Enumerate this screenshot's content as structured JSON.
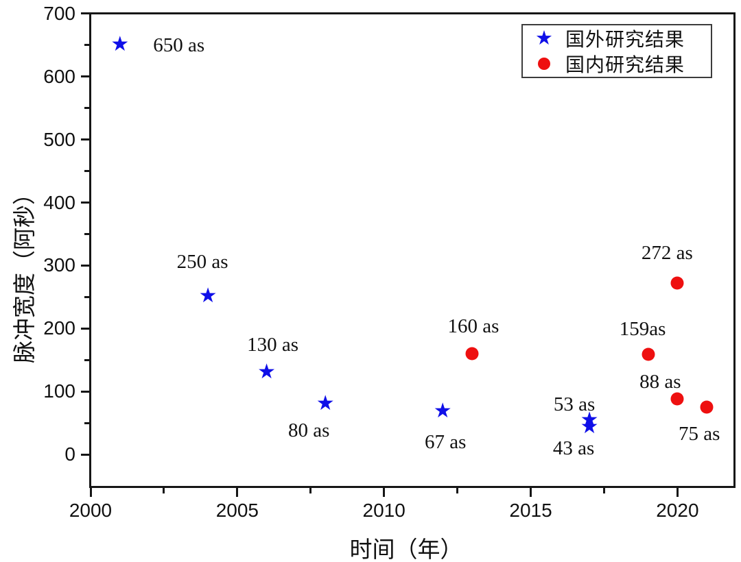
{
  "chart_data": {
    "type": "scatter",
    "title": "",
    "xlabel": "时间（年）",
    "ylabel": "脉冲宽度（阿秒）",
    "xlim": [
      2000,
      2022
    ],
    "ylim": [
      -52,
      700
    ],
    "x_major_ticks": [
      2000,
      2005,
      2010,
      2015,
      2020
    ],
    "x_minor_ticks": [
      2002.5,
      2007.5,
      2012.5,
      2017.5
    ],
    "y_major_ticks": [
      0,
      100,
      200,
      300,
      400,
      500,
      600,
      700
    ],
    "y_minor_ticks": [
      50,
      150,
      250,
      350,
      450,
      550,
      650
    ],
    "grid": false,
    "legend_position": "top-right",
    "series": [
      {
        "name": "国外研究结果",
        "marker": "star",
        "color": "#0f0fe8",
        "points": [
          {
            "x": 2001,
            "y": 650,
            "label": "650 as",
            "label_dx": 86,
            "label_dy": 0
          },
          {
            "x": 2004,
            "y": 250,
            "label": "250 as",
            "label_dx": -8,
            "label_dy": -51
          },
          {
            "x": 2006,
            "y": 130,
            "label": "130 as",
            "label_dx": 9,
            "label_dy": -41
          },
          {
            "x": 2008,
            "y": 80,
            "label": "80 as",
            "label_dx": -24,
            "label_dy": 38
          },
          {
            "x": 2012,
            "y": 67,
            "label": "67 as",
            "label_dx": 4,
            "label_dy": 44
          },
          {
            "x": 2017,
            "y": 53,
            "label": "53 as",
            "label_dx": -22,
            "label_dy": -24
          },
          {
            "x": 2017,
            "y": 43,
            "label": "43 as",
            "label_dx": -23,
            "label_dy": 30
          }
        ]
      },
      {
        "name": "国内研究结果",
        "marker": "circle",
        "color": "#ee1010",
        "points": [
          {
            "x": 2013,
            "y": 160,
            "label": "160 as",
            "label_dx": 2,
            "label_dy": -40
          },
          {
            "x": 2019,
            "y": 159,
            "label": "159as",
            "label_dx": -8,
            "label_dy": -37
          },
          {
            "x": 2020,
            "y": 272,
            "label": "272 as",
            "label_dx": -15,
            "label_dy": -44
          },
          {
            "x": 2020,
            "y": 88,
            "label": "88 as",
            "label_dx": -25,
            "label_dy": -25
          },
          {
            "x": 2021,
            "y": 75,
            "label": "75 as",
            "label_dx": -11,
            "label_dy": 39
          }
        ]
      }
    ]
  }
}
